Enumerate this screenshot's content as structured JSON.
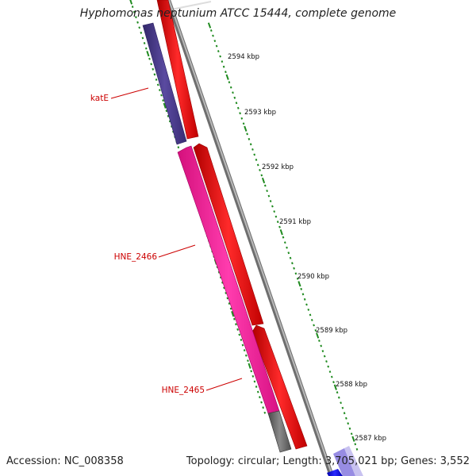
{
  "title": "Hyphomonas neptunium ATCC 15444, complete genome",
  "footer": {
    "accession": "Accession: NC_008358",
    "summary": "Topology: circular; Length: 3,705,021 bp; Genes: 3,552"
  },
  "scale_labels": [
    "2594 kbp",
    "2593 kbp",
    "2592 kbp",
    "2591 kbp",
    "2590 kbp",
    "2589 kbp",
    "2588 kbp",
    "2587 kbp"
  ],
  "gene_labels": [
    "katE",
    "HNE_2466",
    "HNE_2465"
  ],
  "colors": {
    "forward_cds": "#ff0000",
    "reverse_cds_purple": "#4b3c8c",
    "reverse_cds_pink": "#ff2aa0",
    "gray_feature": "#666666",
    "backbone": "#8a8a8a",
    "tick": "#1f8a1f",
    "gene_label": "#cc0000",
    "blue_feature": "#0000ee",
    "lavender_feature": "#8c80e0"
  }
}
